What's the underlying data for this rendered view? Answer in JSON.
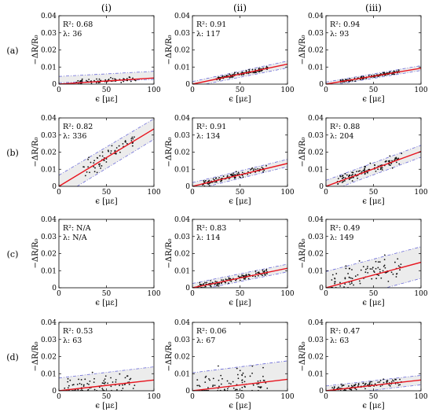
{
  "column_headers": [
    "(i)",
    "(ii)",
    "(iii)"
  ],
  "row_labels": [
    "(a)",
    "(b)",
    "(c)",
    "(d)"
  ],
  "axis": {
    "xlabel": "ϵ [με]",
    "ylabel": "−ΔR/R₀",
    "x_ticks": [
      "0",
      "50",
      "100"
    ],
    "y_ticks": [
      "0",
      "0.01",
      "0.02",
      "0.03",
      "0.04"
    ]
  },
  "colors": {
    "fit_line": "#e8141e",
    "bound_line": "#6b6bd8",
    "band_fill": "#ececec",
    "points": "#111111"
  },
  "chart_data": [
    {
      "type": "scatter",
      "row": "(a)",
      "col": "(i)",
      "r2": "R²: 0.68",
      "lambda": "λ: 36",
      "xlim": [
        0,
        100
      ],
      "ylim": [
        0,
        0.04
      ],
      "fit": {
        "slope": 3.6e-05,
        "intercept": 0
      },
      "band": {
        "upper": [
          0.0045,
          0.0075
        ],
        "lower": [
          0.0008,
          0.0028
        ]
      },
      "points": {
        "n": 70,
        "x": [
          18,
          82
        ],
        "seed": 11
      }
    },
    {
      "type": "scatter",
      "row": "(a)",
      "col": "(ii)",
      "r2": "R²: 0.91",
      "lambda": "λ: 117",
      "xlim": [
        0,
        100
      ],
      "ylim": [
        0,
        0.04
      ],
      "fit": {
        "slope": 0.000117,
        "intercept": 0
      },
      "band": {
        "upper": [
          0.0015,
          0.0135
        ],
        "lower": [
          -0.0015,
          0.0095
        ]
      },
      "points": {
        "n": 110,
        "x": [
          25,
          80
        ],
        "seed": 12
      }
    },
    {
      "type": "scatter",
      "row": "(a)",
      "col": "(iii)",
      "r2": "R²: 0.94",
      "lambda": "λ: 93",
      "xlim": [
        0,
        100
      ],
      "ylim": [
        0,
        0.04
      ],
      "fit": {
        "slope": 9.3e-05,
        "intercept": 0
      },
      "band": {
        "upper": [
          0.0012,
          0.0108
        ],
        "lower": [
          -0.0012,
          0.008
        ]
      },
      "points": {
        "n": 110,
        "x": [
          15,
          78
        ],
        "seed": 13
      }
    },
    {
      "type": "scatter",
      "row": "(b)",
      "col": "(i)",
      "r2": "R²: 0.82",
      "lambda": "λ: 336",
      "xlim": [
        0,
        100
      ],
      "ylim": [
        0,
        0.04
      ],
      "fit": {
        "slope": 0.000336,
        "intercept": 0
      },
      "band": {
        "upper": [
          0.0065,
          0.0395
        ],
        "lower": [
          -0.0065,
          0.0275
        ]
      },
      "points": {
        "n": 60,
        "x": [
          25,
          80
        ],
        "seed": 14
      }
    },
    {
      "type": "scatter",
      "row": "(b)",
      "col": "(ii)",
      "r2": "R²: 0.91",
      "lambda": "λ: 134",
      "xlim": [
        0,
        100
      ],
      "ylim": [
        0,
        0.04
      ],
      "fit": {
        "slope": 0.000134,
        "intercept": 0
      },
      "band": {
        "upper": [
          0.0022,
          0.0158
        ],
        "lower": [
          -0.0022,
          0.0115
        ]
      },
      "points": {
        "n": 110,
        "x": [
          10,
          78
        ],
        "seed": 15
      }
    },
    {
      "type": "scatter",
      "row": "(b)",
      "col": "(iii)",
      "r2": "R²: 0.88",
      "lambda": "λ: 204",
      "xlim": [
        0,
        100
      ],
      "ylim": [
        0,
        0.04
      ],
      "fit": {
        "slope": 0.000204,
        "intercept": 0
      },
      "band": {
        "upper": [
          0.0035,
          0.024
        ],
        "lower": [
          -0.0035,
          0.017
        ]
      },
      "points": {
        "n": 110,
        "x": [
          10,
          80
        ],
        "seed": 16
      }
    },
    {
      "type": "scatter",
      "row": "(c)",
      "col": "(i)",
      "r2": "R²: N/A",
      "lambda": "λ: N/A",
      "xlim": [
        0,
        100
      ],
      "ylim": [
        0,
        0.04
      ],
      "fit": null,
      "band": null,
      "points": null
    },
    {
      "type": "scatter",
      "row": "(c)",
      "col": "(ii)",
      "r2": "R²: 0.83",
      "lambda": "λ: 114",
      "xlim": [
        0,
        100
      ],
      "ylim": [
        0,
        0.04
      ],
      "fit": {
        "slope": 0.000114,
        "intercept": 0
      },
      "band": {
        "upper": [
          0.0025,
          0.0138
        ],
        "lower": [
          -0.002,
          0.0093
        ]
      },
      "points": {
        "n": 120,
        "x": [
          5,
          80
        ],
        "seed": 17
      }
    },
    {
      "type": "scatter",
      "row": "(c)",
      "col": "(iii)",
      "r2": "R²: 0.49",
      "lambda": "λ: 149",
      "xlim": [
        0,
        100
      ],
      "ylim": [
        0,
        0.04
      ],
      "fit": {
        "slope": 0.000149,
        "intercept": 0
      },
      "band": {
        "upper": [
          0.0095,
          0.024
        ],
        "lower": [
          -0.0095,
          0.0055
        ]
      },
      "points": {
        "n": 90,
        "x": [
          5,
          80
        ],
        "seed": 18
      }
    },
    {
      "type": "scatter",
      "row": "(d)",
      "col": "(i)",
      "r2": "R²: 0.53",
      "lambda": "λ: 63",
      "xlim": [
        0,
        100
      ],
      "ylim": [
        0,
        0.04
      ],
      "fit": {
        "slope": 6.3e-05,
        "intercept": 0
      },
      "band": {
        "upper": [
          0.0075,
          0.014
        ],
        "lower": [
          -0.0075,
          -0.001
        ]
      },
      "points": {
        "n": 80,
        "x": [
          5,
          80
        ],
        "seed": 19
      }
    },
    {
      "type": "scatter",
      "row": "(d)",
      "col": "(ii)",
      "r2": "R²: 0.06",
      "lambda": "λ: 67",
      "xlim": [
        0,
        100
      ],
      "ylim": [
        0,
        0.04
      ],
      "fit": {
        "slope": 6.7e-05,
        "intercept": 0
      },
      "band": {
        "upper": [
          0.0105,
          0.0175
        ],
        "lower": [
          -0.0105,
          -0.0035
        ]
      },
      "points": {
        "n": 90,
        "x": [
          5,
          80
        ],
        "seed": 20
      }
    },
    {
      "type": "scatter",
      "row": "(d)",
      "col": "(iii)",
      "r2": "R²: 0.47",
      "lambda": "λ: 63",
      "xlim": [
        0,
        100
      ],
      "ylim": [
        0,
        0.04
      ],
      "fit": {
        "slope": 6.3e-05,
        "intercept": 0
      },
      "band": {
        "upper": [
          0.0028,
          0.009
        ],
        "lower": [
          -0.0028,
          0.0035
        ]
      },
      "points": {
        "n": 110,
        "x": [
          5,
          80
        ],
        "seed": 21
      }
    }
  ]
}
